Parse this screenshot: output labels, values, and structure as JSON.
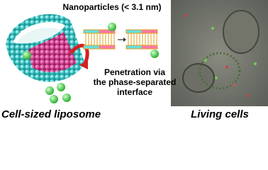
{
  "labels": {
    "title": "Nanoparticles (< 3.1 nm)",
    "caption_lines": [
      "Penetration via",
      "the phase-separated",
      "interface"
    ],
    "left_caption": "Cell-sized liposome",
    "right_caption": "Living cells"
  }
}
